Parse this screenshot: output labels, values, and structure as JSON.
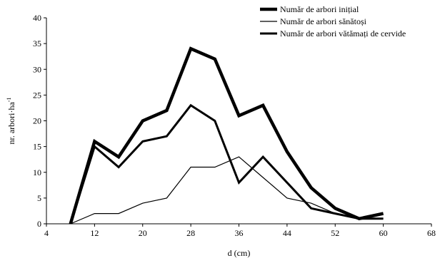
{
  "chart_data": {
    "type": "line",
    "xlabel": "d (cm)",
    "ylabel": "nr. arbori·ha",
    "ylabel_sup": "-1",
    "xlim": [
      4,
      68
    ],
    "ylim": [
      0,
      40
    ],
    "xticks": [
      4,
      12,
      20,
      28,
      36,
      44,
      52,
      60,
      68
    ],
    "yticks": [
      0,
      5,
      10,
      15,
      20,
      25,
      30,
      35,
      40
    ],
    "grid": false,
    "legend_position": "top-right",
    "series": [
      {
        "name": "Număr de arbori inițial",
        "color": "#000000",
        "weight": "heavy",
        "x": [
          8,
          12,
          16,
          20,
          24,
          28,
          32,
          36,
          40,
          44,
          48,
          52,
          56,
          60
        ],
        "y": [
          0,
          16,
          13,
          20,
          22,
          34,
          32,
          21,
          23,
          14,
          7,
          3,
          1,
          2
        ]
      },
      {
        "name": "Număr de arbori sănătoși",
        "color": "#000000",
        "weight": "thin",
        "x": [
          8,
          12,
          16,
          20,
          24,
          28,
          32,
          36,
          40,
          44,
          48,
          52,
          56,
          60
        ],
        "y": [
          0,
          2,
          2,
          4,
          5,
          11,
          11,
          13,
          9,
          5,
          4,
          2,
          1,
          1
        ]
      },
      {
        "name": "Număr de arbori vătămați de cervide",
        "color": "#000000",
        "weight": "medium",
        "x": [
          8,
          12,
          16,
          20,
          24,
          28,
          32,
          36,
          40,
          44,
          48,
          52,
          56,
          60
        ],
        "y": [
          0,
          15,
          11,
          16,
          17,
          23,
          20,
          8,
          13,
          8,
          3,
          2,
          1,
          1
        ]
      }
    ]
  }
}
